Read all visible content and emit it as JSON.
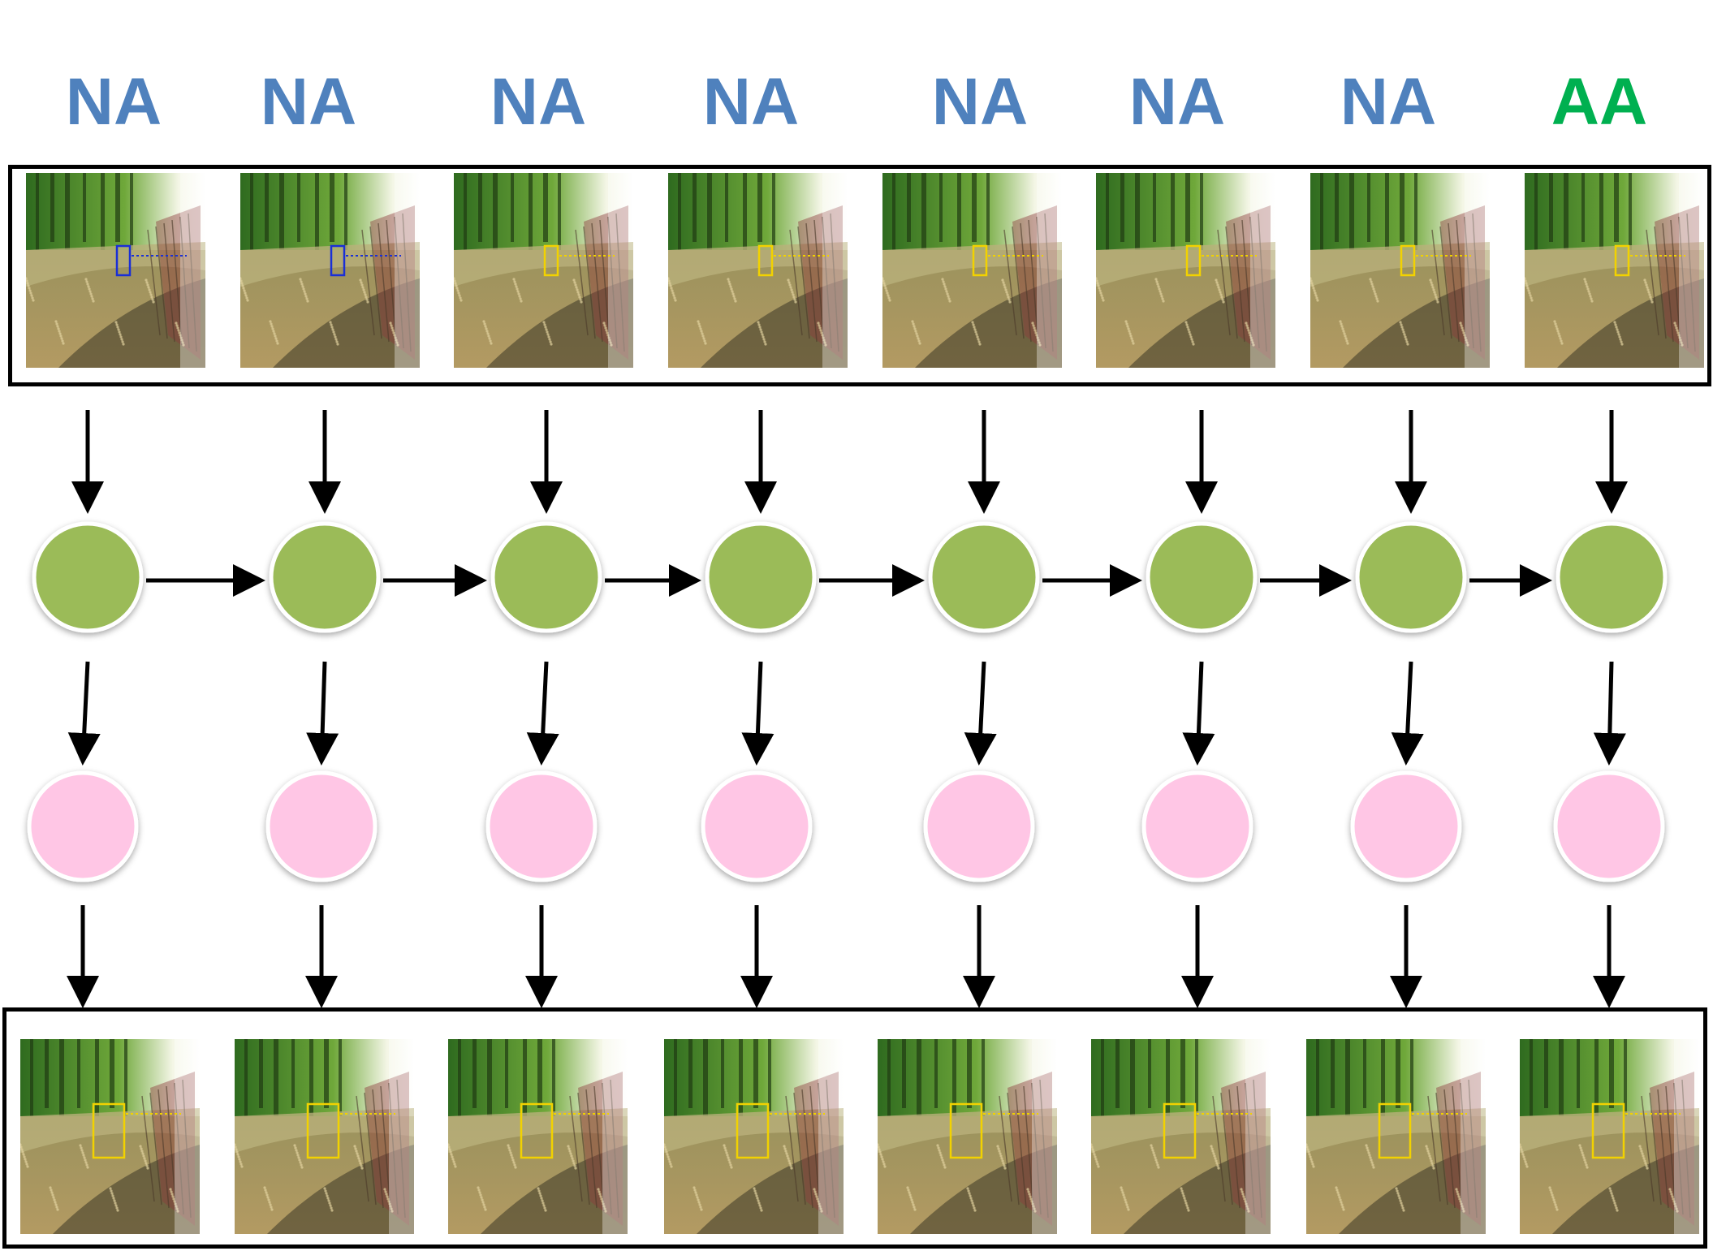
{
  "figure": {
    "frame_labels": [
      {
        "text": "NA",
        "color": "#4f81bd"
      },
      {
        "text": "NA",
        "color": "#4f81bd"
      },
      {
        "text": "NA",
        "color": "#4f81bd"
      },
      {
        "text": "NA",
        "color": "#4f81bd"
      },
      {
        "text": "NA",
        "color": "#4f81bd"
      },
      {
        "text": "NA",
        "color": "#4f81bd"
      },
      {
        "text": "NA",
        "color": "#4f81bd"
      },
      {
        "text": "AA",
        "color": "#00b050"
      }
    ],
    "colors": {
      "hidden_node": "#9bbb59",
      "output_node": "#ffc6e5",
      "arrow": "#000000",
      "input_detection_box_first": "#1a2fd6",
      "input_detection_box_rest": "#f2d200",
      "output_detection_box": "#f2d200"
    },
    "icons": {
      "input_thumbnail": "forest-path-frame-icon",
      "output_thumbnail": "forest-path-frame-icon"
    }
  }
}
